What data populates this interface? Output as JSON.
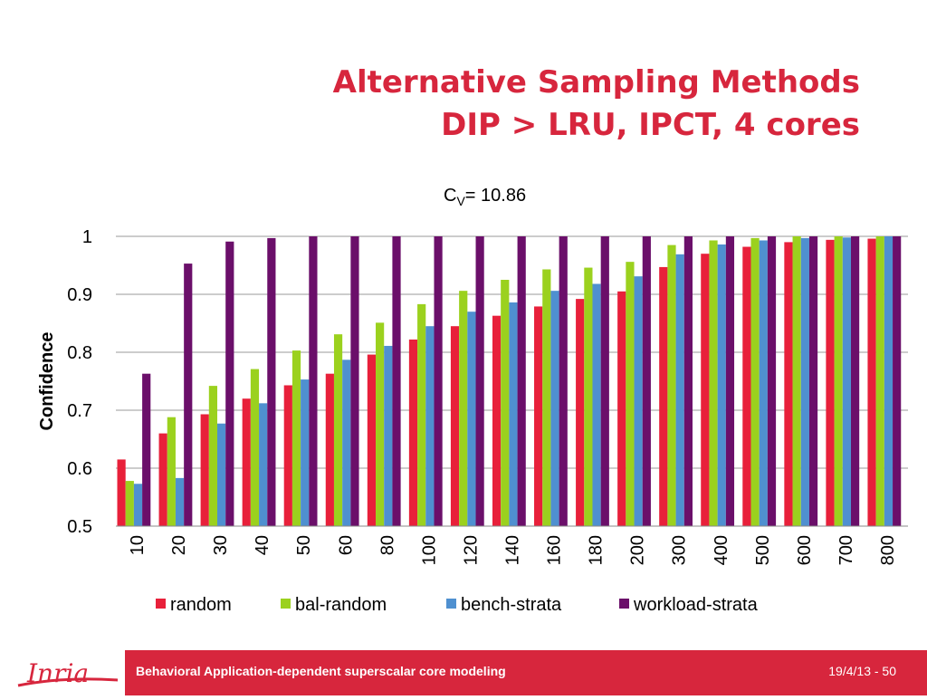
{
  "slide": {
    "title_line1": "Alternative Sampling Methods",
    "title_line2": "DIP > LRU, IPCT, 4 cores",
    "footer_text": "Behavioral Application-dependent superscalar core modeling",
    "footer_right": "19/4/13 - 50",
    "logo_text": "Inria",
    "accent_color": "#d7263d"
  },
  "chart_data": {
    "type": "bar",
    "annotation": {
      "base": "C",
      "subscript": "V",
      "text": "= 10.86"
    },
    "ylabel": "Confidence",
    "xlabel": "",
    "ylim": [
      0.5,
      1
    ],
    "yticks": [
      0.5,
      0.6,
      0.7,
      0.8,
      0.9,
      1
    ],
    "ytick_labels": [
      "0.5",
      "0.6",
      "0.7",
      "0.8",
      "0.9",
      "1"
    ],
    "grid": true,
    "legend_position": "bottom",
    "categories": [
      "10",
      "20",
      "30",
      "40",
      "50",
      "60",
      "80",
      "100",
      "120",
      "140",
      "160",
      "180",
      "200",
      "300",
      "400",
      "500",
      "600",
      "700",
      "800"
    ],
    "series": [
      {
        "name": "random",
        "color": "#e8203a",
        "values": [
          0.615,
          0.66,
          0.693,
          0.72,
          0.743,
          0.763,
          0.796,
          0.822,
          0.845,
          0.863,
          0.879,
          0.892,
          0.905,
          0.947,
          0.97,
          0.982,
          0.99,
          0.994,
          0.996
        ]
      },
      {
        "name": "bal-random",
        "color": "#9bd11e",
        "values": [
          0.578,
          0.688,
          0.742,
          0.771,
          0.803,
          0.831,
          0.851,
          0.883,
          0.906,
          0.925,
          0.943,
          0.946,
          0.956,
          0.985,
          0.993,
          0.997,
          1.0,
          1.0,
          1.0
        ]
      },
      {
        "name": "bench-strata",
        "color": "#4f90d0",
        "values": [
          0.573,
          0.583,
          0.677,
          0.712,
          0.753,
          0.787,
          0.811,
          0.845,
          0.87,
          0.886,
          0.906,
          0.918,
          0.931,
          0.969,
          0.986,
          0.993,
          0.997,
          0.998,
          1.0
        ]
      },
      {
        "name": "workload-strata",
        "color": "#6b0f6a",
        "values": [
          0.763,
          0.953,
          0.991,
          0.997,
          1.0,
          1.0,
          1.0,
          1.0,
          1.0,
          1.0,
          1.0,
          1.0,
          1.0,
          1.0,
          1.0,
          1.0,
          1.0,
          1.0,
          1.0
        ]
      }
    ]
  }
}
